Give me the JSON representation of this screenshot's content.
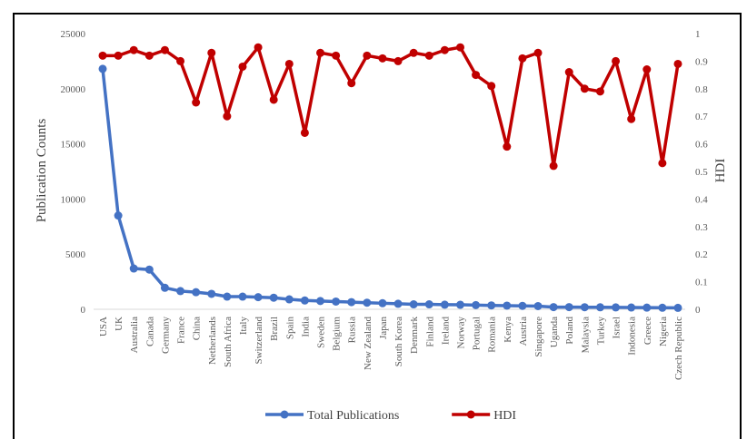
{
  "chart_data": {
    "type": "line",
    "title": "",
    "categories": [
      "USA",
      "UK",
      "Australia",
      "Canada",
      "Germany",
      "France",
      "China",
      "Netherlands",
      "South Africa",
      "Italy",
      "Switzerland",
      "Brazil",
      "Spain",
      "India",
      "Sweden",
      "Belgium",
      "Russia",
      "New Zealand",
      "Japan",
      "South Korea",
      "Denmark",
      "Finland",
      "Ireland",
      "Norway",
      "Portugal",
      "Romania",
      "Kenya",
      "Austria",
      "Singapore",
      "Uganda",
      "Poland",
      "Malaysia",
      "Turkey",
      "Israel",
      "Indonesia",
      "Greece",
      "Nigeria",
      "Czech Republic"
    ],
    "ylabel_left": "Publication Counts",
    "ylabel_right": "HDI",
    "yticks_left": [
      "0",
      "5000",
      "10000",
      "15000",
      "20000",
      "25000"
    ],
    "yticks_right": [
      "0",
      "0.1",
      "0.2",
      "0.3",
      "0.4",
      "0.5",
      "0.6",
      "0.7",
      "0.8",
      "0.9",
      "1"
    ],
    "ylim_left": [
      0,
      25000
    ],
    "ylim_right": [
      0,
      1
    ],
    "grid": false,
    "legend_position": "bottom",
    "series": [
      {
        "name": "Total Publications",
        "axis": "left",
        "color": "#4472C4",
        "values": [
          21800,
          8500,
          3700,
          3600,
          1950,
          1650,
          1550,
          1400,
          1150,
          1150,
          1100,
          1050,
          900,
          800,
          750,
          700,
          650,
          600,
          550,
          500,
          450,
          450,
          420,
          410,
          380,
          350,
          330,
          310,
          290,
          200,
          200,
          190,
          180,
          170,
          160,
          150,
          140,
          130
        ]
      },
      {
        "name": "HDI",
        "axis": "right",
        "color": "#C00000",
        "values": [
          0.92,
          0.92,
          0.94,
          0.92,
          0.94,
          0.9,
          0.75,
          0.93,
          0.7,
          0.88,
          0.95,
          0.76,
          0.89,
          0.64,
          0.93,
          0.92,
          0.82,
          0.92,
          0.91,
          0.9,
          0.93,
          0.92,
          0.94,
          0.95,
          0.85,
          0.81,
          0.59,
          0.91,
          0.93,
          0.52,
          0.86,
          0.8,
          0.79,
          0.9,
          0.69,
          0.87,
          0.53,
          0.89
        ]
      }
    ]
  }
}
